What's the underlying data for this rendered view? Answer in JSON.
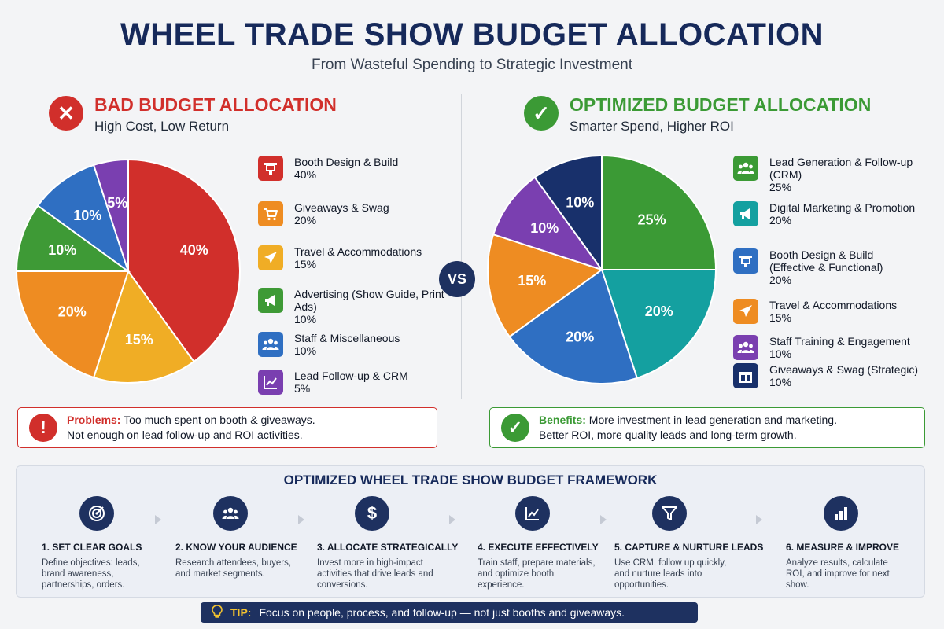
{
  "title": "WHEEL TRADE SHOW BUDGET ALLOCATION",
  "subtitle": "From Wasteful Spending to Strategic Investment",
  "vs_label": "VS",
  "chart_data": [
    {
      "type": "pie",
      "title": "BAD BUDGET ALLOCATION",
      "subtitle": "High Cost, Low Return",
      "slices": [
        {
          "label": "Booth Design & Build",
          "value": 40,
          "color": "#d12f2b"
        },
        {
          "label": "Giveaways & Swag",
          "value": 20,
          "color": "#ee8c22"
        },
        {
          "label": "Travel & Accommodations",
          "value": 15,
          "color": "#f0ad25"
        },
        {
          "label": "Advertising (Show Guide, Print Ads)",
          "value": 10,
          "color": "#3e9a36"
        },
        {
          "label": "Staff & Miscellaneous",
          "value": 10,
          "color": "#2f6fc2"
        },
        {
          "label": "Lead Follow-up & CRM",
          "value": 5,
          "color": "#7a3fb0"
        }
      ],
      "pie_order": [
        0,
        2,
        1,
        3,
        4,
        5
      ]
    },
    {
      "type": "pie",
      "title": "OPTIMIZED BUDGET ALLOCATION",
      "subtitle": "Smarter Spend, Higher ROI",
      "slices": [
        {
          "label": "Lead Generation & Follow-up (CRM)",
          "value": 25,
          "color": "#3b9a35"
        },
        {
          "label": "Digital Marketing & Promotion",
          "value": 20,
          "color": "#14a0a0"
        },
        {
          "label": "Booth Design & Build (Effective & Functional)",
          "value": 20,
          "color": "#2f6fc2"
        },
        {
          "label": "Travel & Accommodations",
          "value": 15,
          "color": "#ee8c22"
        },
        {
          "label": "Staff Training & Engagement",
          "value": 10,
          "color": "#7a3fb0"
        },
        {
          "label": "Giveaways & Swag (Strategic)",
          "value": 10,
          "color": "#18306b"
        }
      ],
      "pie_order": [
        0,
        1,
        2,
        3,
        4,
        5
      ]
    }
  ],
  "left": {
    "legend": [
      {
        "name": "Booth Design & Build",
        "value": "40%",
        "icon": "booth-icon"
      },
      {
        "name": "Giveaways & Swag",
        "value": "20%",
        "icon": "cart-icon"
      },
      {
        "name": "Travel & Accommodations",
        "value": "15%",
        "icon": "plane-icon"
      },
      {
        "name": "Advertising (Show Guide, Print Ads)",
        "value": "10%",
        "icon": "megaphone-icon"
      },
      {
        "name": "Staff & Miscellaneous",
        "value": "10%",
        "icon": "people-icon"
      },
      {
        "name": "Lead Follow-up & CRM",
        "value": "5%",
        "icon": "chart-icon"
      }
    ],
    "note_label": "Problems:",
    "note_line1": "Too much spent on booth & giveaways.",
    "note_line2": "Not enough on lead follow-up and ROI activities.",
    "accent": "#d12f2b"
  },
  "right": {
    "legend": [
      {
        "name": "Lead Generation & Follow-up (CRM)",
        "value": "25%",
        "icon": "people-icon"
      },
      {
        "name": "Digital Marketing & Promotion",
        "value": "20%",
        "icon": "megaphone-icon"
      },
      {
        "name": "Booth Design & Build (Effective & Functional)",
        "value": "20%",
        "icon": "booth-icon"
      },
      {
        "name": "Travel & Accommodations",
        "value": "15%",
        "icon": "plane-icon"
      },
      {
        "name": "Staff Training & Engagement",
        "value": "10%",
        "icon": "people-icon"
      },
      {
        "name": "Giveaways & Swag (Strategic)",
        "value": "10%",
        "icon": "gift-icon"
      }
    ],
    "note_label": "Benefits:",
    "note_line1": "More investment in lead generation and marketing.",
    "note_line2": "Better ROI, more quality leads and long-term growth.",
    "accent": "#3b9a35"
  },
  "framework": {
    "title": "OPTIMIZED WHEEL TRADE SHOW BUDGET FRAMEWORK",
    "steps": [
      {
        "title": "1. SET CLEAR GOALS",
        "desc": "Define objectives: leads, brand awareness, partnerships, orders.",
        "icon": "target-icon"
      },
      {
        "title": "2. KNOW YOUR AUDIENCE",
        "desc": "Research attendees, buyers, and market segments.",
        "icon": "people-icon"
      },
      {
        "title": "3. ALLOCATE STRATEGICALLY",
        "desc": "Invest more in high-impact activities that drive leads and conversions.",
        "icon": "dollar-icon"
      },
      {
        "title": "4. EXECUTE EFFECTIVELY",
        "desc": "Train staff, prepare materials, and optimize booth experience.",
        "icon": "chart-icon"
      },
      {
        "title": "5. CAPTURE & NURTURE LEADS",
        "desc": "Use CRM, follow up quickly, and nurture leads into opportunities.",
        "icon": "funnel-icon"
      },
      {
        "title": "6. MEASURE & IMPROVE",
        "desc": "Analyze results, calculate ROI, and improve for next show.",
        "icon": "bar-chart-icon"
      }
    ]
  },
  "tip": {
    "label": "TIP:",
    "text": "Focus on people, process, and follow-up — not just booths and giveaways.",
    "icon": "lightbulb-icon"
  }
}
